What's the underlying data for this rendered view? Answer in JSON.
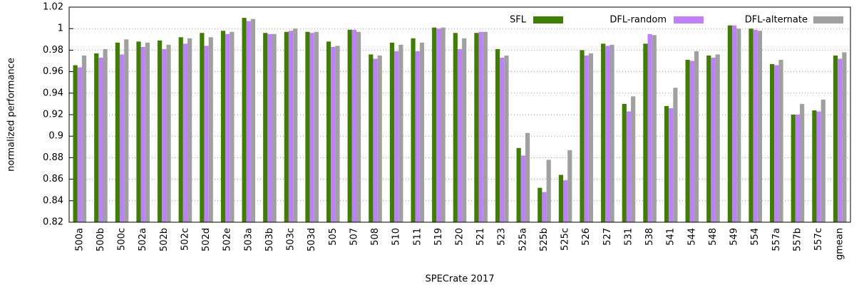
{
  "chart_data": {
    "type": "bar",
    "xlabel": "SPECrate 2017",
    "ylabel": "normalized performance",
    "categories": [
      "500a",
      "500b",
      "500c",
      "502a",
      "502b",
      "502c",
      "502d",
      "502e",
      "503a",
      "503b",
      "503c",
      "503d",
      "505",
      "507",
      "508",
      "510",
      "511",
      "519",
      "520",
      "521",
      "523",
      "525a",
      "525b",
      "525c",
      "526",
      "527",
      "531",
      "538",
      "541",
      "544",
      "548",
      "549",
      "554",
      "557a",
      "557b",
      "557c",
      "gmean"
    ],
    "series": [
      {
        "name": "SFL",
        "color": "#3f7f00",
        "values": [
          0.966,
          0.977,
          0.987,
          0.988,
          0.989,
          0.992,
          0.996,
          0.998,
          1.01,
          0.996,
          0.997,
          0.997,
          0.988,
          0.999,
          0.976,
          0.987,
          0.991,
          1.001,
          0.996,
          0.996,
          0.981,
          0.889,
          0.852,
          0.864,
          0.98,
          0.986,
          0.93,
          0.986,
          0.928,
          0.971,
          0.975,
          1.003,
          1.0,
          0.967,
          0.92,
          0.924,
          0.975
        ]
      },
      {
        "name": "DFL-random",
        "color": "#bf80ff",
        "values": [
          0.964,
          0.973,
          0.976,
          0.983,
          0.981,
          0.986,
          0.984,
          0.995,
          1.007,
          0.995,
          0.998,
          0.996,
          0.983,
          0.999,
          0.972,
          0.979,
          0.979,
          1.0,
          0.981,
          0.997,
          0.973,
          0.882,
          0.848,
          0.859,
          0.975,
          0.984,
          0.923,
          0.995,
          0.926,
          0.97,
          0.973,
          1.003,
          0.999,
          0.966,
          0.92,
          0.923,
          0.972
        ]
      },
      {
        "name": "DFL-alternate",
        "color": "#a0a0a0",
        "values": [
          0.975,
          0.981,
          0.99,
          0.987,
          0.985,
          0.991,
          0.992,
          0.997,
          1.009,
          0.995,
          1.0,
          0.997,
          0.984,
          0.997,
          0.975,
          0.985,
          0.987,
          1.001,
          0.991,
          0.997,
          0.975,
          0.903,
          0.878,
          0.887,
          0.977,
          0.985,
          0.937,
          0.994,
          0.945,
          0.979,
          0.976,
          1.0,
          0.998,
          0.971,
          0.93,
          0.934,
          0.978
        ]
      }
    ],
    "ylim": [
      0.82,
      1.02
    ],
    "yticks": [
      0.82,
      0.84,
      0.86,
      0.88,
      0.9,
      0.92,
      0.94,
      0.96,
      0.98,
      1,
      1.02
    ],
    "grid": true,
    "legend": "top-right"
  }
}
